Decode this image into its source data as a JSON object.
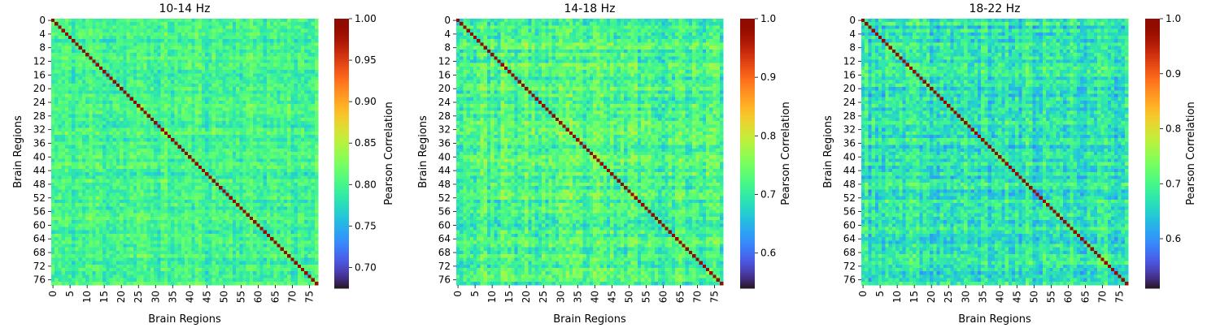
{
  "figure": {
    "panel_titles": [
      "10-14 Hz",
      "14-18 Hz",
      "18-22 Hz"
    ]
  },
  "chart_data": [
    {
      "type": "heatmap",
      "title": "10-14 Hz",
      "xlabel": "Brain Regions",
      "ylabel": "Brain Regions",
      "n": 78,
      "xticks": [
        0,
        5,
        10,
        15,
        20,
        25,
        30,
        35,
        40,
        45,
        50,
        55,
        60,
        65,
        70,
        75
      ],
      "yticks": [
        0,
        4,
        8,
        12,
        16,
        20,
        24,
        28,
        32,
        36,
        40,
        44,
        48,
        52,
        56,
        60,
        64,
        68,
        72,
        76
      ],
      "colormap": "turbo",
      "colorbar": {
        "label": "Pearson Correlation",
        "vmin": 0.675,
        "vmax": 1.0,
        "ticks": [
          0.7,
          0.75,
          0.8,
          0.85,
          0.9,
          0.95,
          1.0
        ],
        "tick_labels": [
          "0.70",
          "0.75",
          "0.80",
          "0.85",
          "0.90",
          "0.95",
          "1.00"
        ]
      },
      "diagonal_value": 1.0,
      "offdiag_mean": 0.8,
      "offdiag_range": [
        0.72,
        0.86
      ],
      "seed": 11
    },
    {
      "type": "heatmap",
      "title": "14-18 Hz",
      "xlabel": "Brain Regions",
      "ylabel": "Brain Regions",
      "n": 78,
      "xticks": [
        0,
        5,
        10,
        15,
        20,
        25,
        30,
        35,
        40,
        45,
        50,
        55,
        60,
        65,
        70,
        75
      ],
      "yticks": [
        0,
        4,
        8,
        12,
        16,
        20,
        24,
        28,
        32,
        36,
        40,
        44,
        48,
        52,
        56,
        60,
        64,
        68,
        72,
        76
      ],
      "colormap": "turbo",
      "colorbar": {
        "label": "Pearson Correlation",
        "vmin": 0.54,
        "vmax": 1.0,
        "ticks": [
          0.6,
          0.7,
          0.8,
          0.9,
          1.0
        ],
        "tick_labels": [
          "0.6",
          "0.7",
          "0.8",
          "0.9",
          "1.0"
        ]
      },
      "diagonal_value": 1.0,
      "offdiag_mean": 0.72,
      "offdiag_range": [
        0.58,
        0.82
      ],
      "seed": 23
    },
    {
      "type": "heatmap",
      "title": "18-22 Hz",
      "xlabel": "Brain Regions",
      "ylabel": "Brain Regions",
      "n": 78,
      "xticks": [
        0,
        5,
        10,
        15,
        20,
        25,
        30,
        35,
        40,
        45,
        50,
        55,
        60,
        65,
        70,
        75
      ],
      "yticks": [
        0,
        4,
        8,
        12,
        16,
        20,
        24,
        28,
        32,
        36,
        40,
        44,
        48,
        52,
        56,
        60,
        64,
        68,
        72,
        76
      ],
      "colormap": "turbo",
      "colorbar": {
        "label": "Pearson Correlation",
        "vmin": 0.51,
        "vmax": 1.0,
        "ticks": [
          0.6,
          0.7,
          0.8,
          0.9,
          1.0
        ],
        "tick_labels": [
          "0.6",
          "0.7",
          "0.8",
          "0.9",
          "1.0"
        ]
      },
      "diagonal_value": 1.0,
      "offdiag_mean": 0.67,
      "offdiag_range": [
        0.53,
        0.79
      ],
      "seed": 37
    }
  ]
}
